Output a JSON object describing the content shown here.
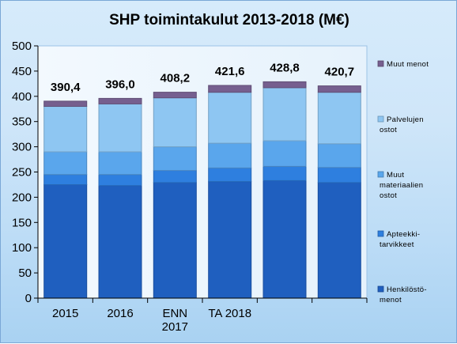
{
  "chart_data": {
    "type": "bar",
    "stacked": true,
    "title": "SHP toimintakulut 2013-2018 (M€)",
    "categories": [
      "2015",
      "2016",
      "ENN 2017",
      "TA 2018",
      "",
      ""
    ],
    "ylim": [
      0,
      500
    ],
    "yticks": [
      0,
      50,
      100,
      150,
      200,
      250,
      300,
      350,
      400,
      450,
      500
    ],
    "grid": false,
    "legend_position": "right",
    "totals": [
      "390,4",
      "396,0",
      "408,2",
      "421,6",
      "428,8",
      "420,7"
    ],
    "series": [
      {
        "name": "Henkilöstö-menot",
        "color": "#1f5fbf",
        "values": [
          225,
          223,
          229,
          231,
          233,
          229
        ]
      },
      {
        "name": "Apteekki-tarvikkeet",
        "color": "#2e7fdf",
        "values": [
          20,
          22,
          24,
          27,
          28,
          30
        ]
      },
      {
        "name": "Muut materiaalien ostot",
        "color": "#5aa6ec",
        "values": [
          45,
          45,
          47,
          49,
          51,
          47
        ]
      },
      {
        "name": "Palvelujen ostot",
        "color": "#8ec6f2",
        "values": [
          90,
          95,
          97,
          101,
          105,
          102
        ]
      },
      {
        "name": "Muut menot",
        "color": "#765f8f",
        "values": [
          10.4,
          11.0,
          11.2,
          13.6,
          11.8,
          12.7
        ]
      }
    ]
  }
}
